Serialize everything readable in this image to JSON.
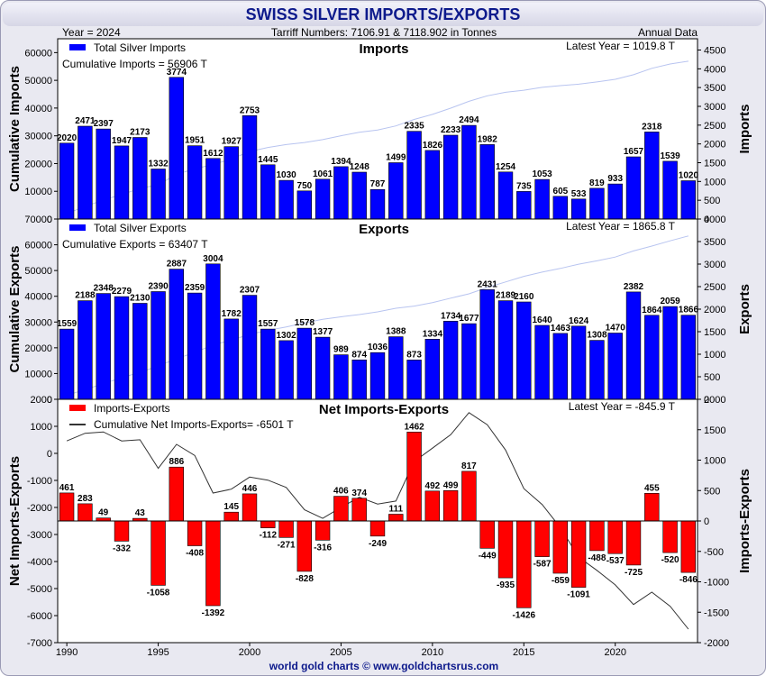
{
  "title": "SWISS SILVER IMPORTS/EXPORTS",
  "header": {
    "year": "Year = 2024",
    "tariff": "Tarriff Numbers: 7106.91 & 7118.902 in Tonnes",
    "frequency": "Annual Data"
  },
  "footer": "world gold charts © www.goldchartsrus.com",
  "colors": {
    "bars_blue": "#0000ff",
    "bars_red": "#ff0000",
    "cum_line": "#b8c4f0",
    "net_cum_line": "#333333",
    "title": "#0d1a8c"
  },
  "chart_data": [
    {
      "type": "bar",
      "panel": "imports",
      "title": "Imports",
      "legend": "Total Silver Imports",
      "cumulative_label": "Cumulative Imports = 56906 T",
      "latest_label": "Latest Year = 1019.8 T",
      "ylabel_left": "Cumulative Imports",
      "ylabel_right": "Imports",
      "left_ylim": [
        0,
        65000
      ],
      "left_ticks": [
        0,
        10000,
        20000,
        30000,
        40000,
        50000,
        60000
      ],
      "right_ylim": [
        0,
        4800
      ],
      "right_ticks": [
        0,
        500,
        1000,
        1500,
        2000,
        2500,
        3000,
        3500,
        4000,
        4500
      ],
      "x": [
        1990,
        1991,
        1992,
        1993,
        1994,
        1995,
        1996,
        1997,
        1998,
        1999,
        2000,
        2001,
        2002,
        2003,
        2004,
        2005,
        2006,
        2007,
        2008,
        2009,
        2010,
        2011,
        2012,
        2013,
        2014,
        2015,
        2016,
        2017,
        2018,
        2019,
        2020,
        2021,
        2022,
        2023,
        2024
      ],
      "values": [
        2020,
        2471,
        2397,
        1947,
        2173,
        1332,
        3774,
        1951,
        1612,
        1927,
        2753,
        1445,
        1030,
        750,
        1061,
        1394,
        1248,
        787,
        1499,
        2335,
        1826,
        2233,
        2494,
        1982,
        1254,
        735,
        1053,
        605,
        533,
        819,
        933,
        1657,
        2318,
        1539,
        1020
      ]
    },
    {
      "type": "bar",
      "panel": "exports",
      "title": "Exports",
      "legend": "Total Silver Exports",
      "cumulative_label": "Cumulative Exports = 63407 T",
      "latest_label": "Latest Year = 1865.8 T",
      "ylabel_left": "Cumulative Exports",
      "ylabel_right": "Exports",
      "left_ylim": [
        0,
        70000
      ],
      "left_ticks": [
        0,
        10000,
        20000,
        30000,
        40000,
        50000,
        60000,
        70000
      ],
      "right_ylim": [
        0,
        4000
      ],
      "right_ticks": [
        0,
        500,
        1000,
        1500,
        2000,
        2500,
        3000,
        3500,
        4000
      ],
      "x": [
        1990,
        1991,
        1992,
        1993,
        1994,
        1995,
        1996,
        1997,
        1998,
        1999,
        2000,
        2001,
        2002,
        2003,
        2004,
        2005,
        2006,
        2007,
        2008,
        2009,
        2010,
        2011,
        2012,
        2013,
        2014,
        2015,
        2016,
        2017,
        2018,
        2019,
        2020,
        2021,
        2022,
        2023,
        2024
      ],
      "values": [
        1559,
        2188,
        2348,
        2279,
        2130,
        2390,
        2887,
        2359,
        3004,
        1782,
        2307,
        1557,
        1302,
        1578,
        1377,
        989,
        874,
        1036,
        1388,
        873,
        1334,
        1734,
        1677,
        2431,
        2189,
        2160,
        1640,
        1463,
        1624,
        1308,
        1470,
        2382,
        1864,
        2059,
        1866
      ]
    },
    {
      "type": "bar",
      "panel": "net",
      "title": "Net Imports-Exports",
      "legend": "Imports-Exports",
      "cumulative_label": "Cumulative Net Imports-Exports= -6501 T",
      "latest_label": "Latest Year = -845.9 T",
      "ylabel_left": "Net Imports-Exports",
      "ylabel_right": "Imports-Exports",
      "left_ylim": [
        -7000,
        2000
      ],
      "left_ticks": [
        -7000,
        -6000,
        -5000,
        -4000,
        -3000,
        -2000,
        -1000,
        0,
        1000,
        2000
      ],
      "right_ylim": [
        -2000,
        2000
      ],
      "right_ticks": [
        -2000,
        -1500,
        -1000,
        -500,
        0,
        500,
        1000,
        1500,
        2000
      ],
      "x_ticks": [
        1990,
        1995,
        2000,
        2005,
        2010,
        2015,
        2020
      ],
      "x": [
        1990,
        1991,
        1992,
        1993,
        1994,
        1995,
        1996,
        1997,
        1998,
        1999,
        2000,
        2001,
        2002,
        2003,
        2004,
        2005,
        2006,
        2007,
        2008,
        2009,
        2010,
        2011,
        2012,
        2013,
        2014,
        2015,
        2016,
        2017,
        2018,
        2019,
        2020,
        2021,
        2022,
        2023,
        2024
      ],
      "values": [
        461,
        283,
        49,
        -332,
        43,
        -1058,
        886,
        -408,
        -1392,
        145,
        446,
        -112,
        -271,
        -828,
        -316,
        406,
        374,
        -249,
        111,
        1462,
        492,
        499,
        817,
        -449,
        -935,
        -1426,
        -587,
        -859,
        -1091,
        -488,
        -537,
        -725,
        455,
        -520,
        -846
      ]
    }
  ]
}
